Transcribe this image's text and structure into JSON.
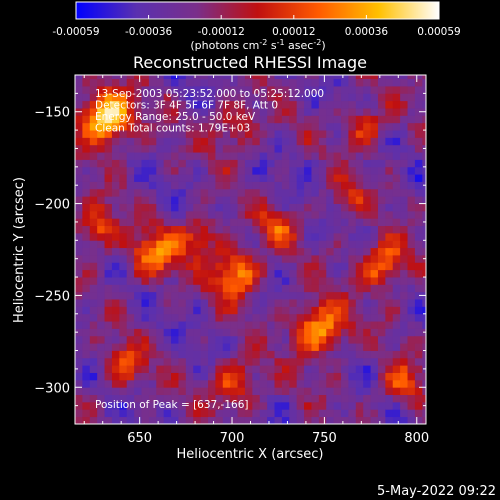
{
  "chart_data": {
    "type": "heatmap",
    "title": "Reconstructed RHESSI Image",
    "xlabel": "Heliocentric X (arcsec)",
    "ylabel": "Heliocentric Y (arcsec)",
    "xlim": [
      615,
      805
    ],
    "ylim": [
      -320,
      -130
    ],
    "x_ticks": [
      650,
      700,
      750,
      800
    ],
    "y_ticks": [
      -150,
      -200,
      -250,
      -300
    ],
    "colorbar": {
      "ticks": [
        "-0.00059",
        "-0.00036",
        "-0.00012",
        "0.00012",
        "0.00036",
        "0.00059"
      ],
      "unit_text": "(photons cm",
      "unit_sup1": "-2",
      "unit_mid1": " s",
      "unit_sup2": "-1",
      "unit_mid2": " asec",
      "unit_sup3": "-2",
      "unit_end": ")",
      "stops": [
        "#0000ff",
        "#5a30b0",
        "#7a2f8a",
        "#c01010",
        "#ff5a00",
        "#ffc000",
        "#ffffff"
      ],
      "range": [
        -0.00059,
        0.00059
      ]
    },
    "annotations": [
      "13-Sep-2003 05:23:52.000 to 05:25:12.000",
      "Detectors: 3F 4F 5F 6F 7F 8F, Att 0",
      "Energy Range: 25.0 - 50.0 keV",
      "Clean     Total counts: 1.79E+03"
    ],
    "peak_label": "Position of Peak = [637,-166]",
    "peak": [
      637,
      -166
    ],
    "grid": false,
    "colormap_hotspots": [
      {
        "x": 630,
        "y": -155,
        "amp": 1.0,
        "sigma": 10
      },
      {
        "x": 625,
        "y": -215,
        "amp": 0.55,
        "sigma": 8
      },
      {
        "x": 655,
        "y": -230,
        "amp": 0.6,
        "sigma": 9
      },
      {
        "x": 680,
        "y": -220,
        "amp": 0.5,
        "sigma": 8
      },
      {
        "x": 700,
        "y": -240,
        "amp": 0.7,
        "sigma": 9
      },
      {
        "x": 722,
        "y": -215,
        "amp": 0.45,
        "sigma": 7
      },
      {
        "x": 745,
        "y": -270,
        "amp": 0.75,
        "sigma": 10
      },
      {
        "x": 780,
        "y": -235,
        "amp": 0.65,
        "sigma": 9
      },
      {
        "x": 770,
        "y": -160,
        "amp": 0.45,
        "sigma": 8
      },
      {
        "x": 700,
        "y": -160,
        "amp": 0.4,
        "sigma": 9
      },
      {
        "x": 640,
        "y": -290,
        "amp": 0.45,
        "sigma": 8
      },
      {
        "x": 700,
        "y": -300,
        "amp": 0.5,
        "sigma": 9
      },
      {
        "x": 790,
        "y": -300,
        "amp": 0.45,
        "sigma": 8
      },
      {
        "x": 760,
        "y": -200,
        "amp": 0.35,
        "sigma": 7
      }
    ]
  },
  "footer": {
    "timestamp": "5-May-2022 09:22"
  }
}
